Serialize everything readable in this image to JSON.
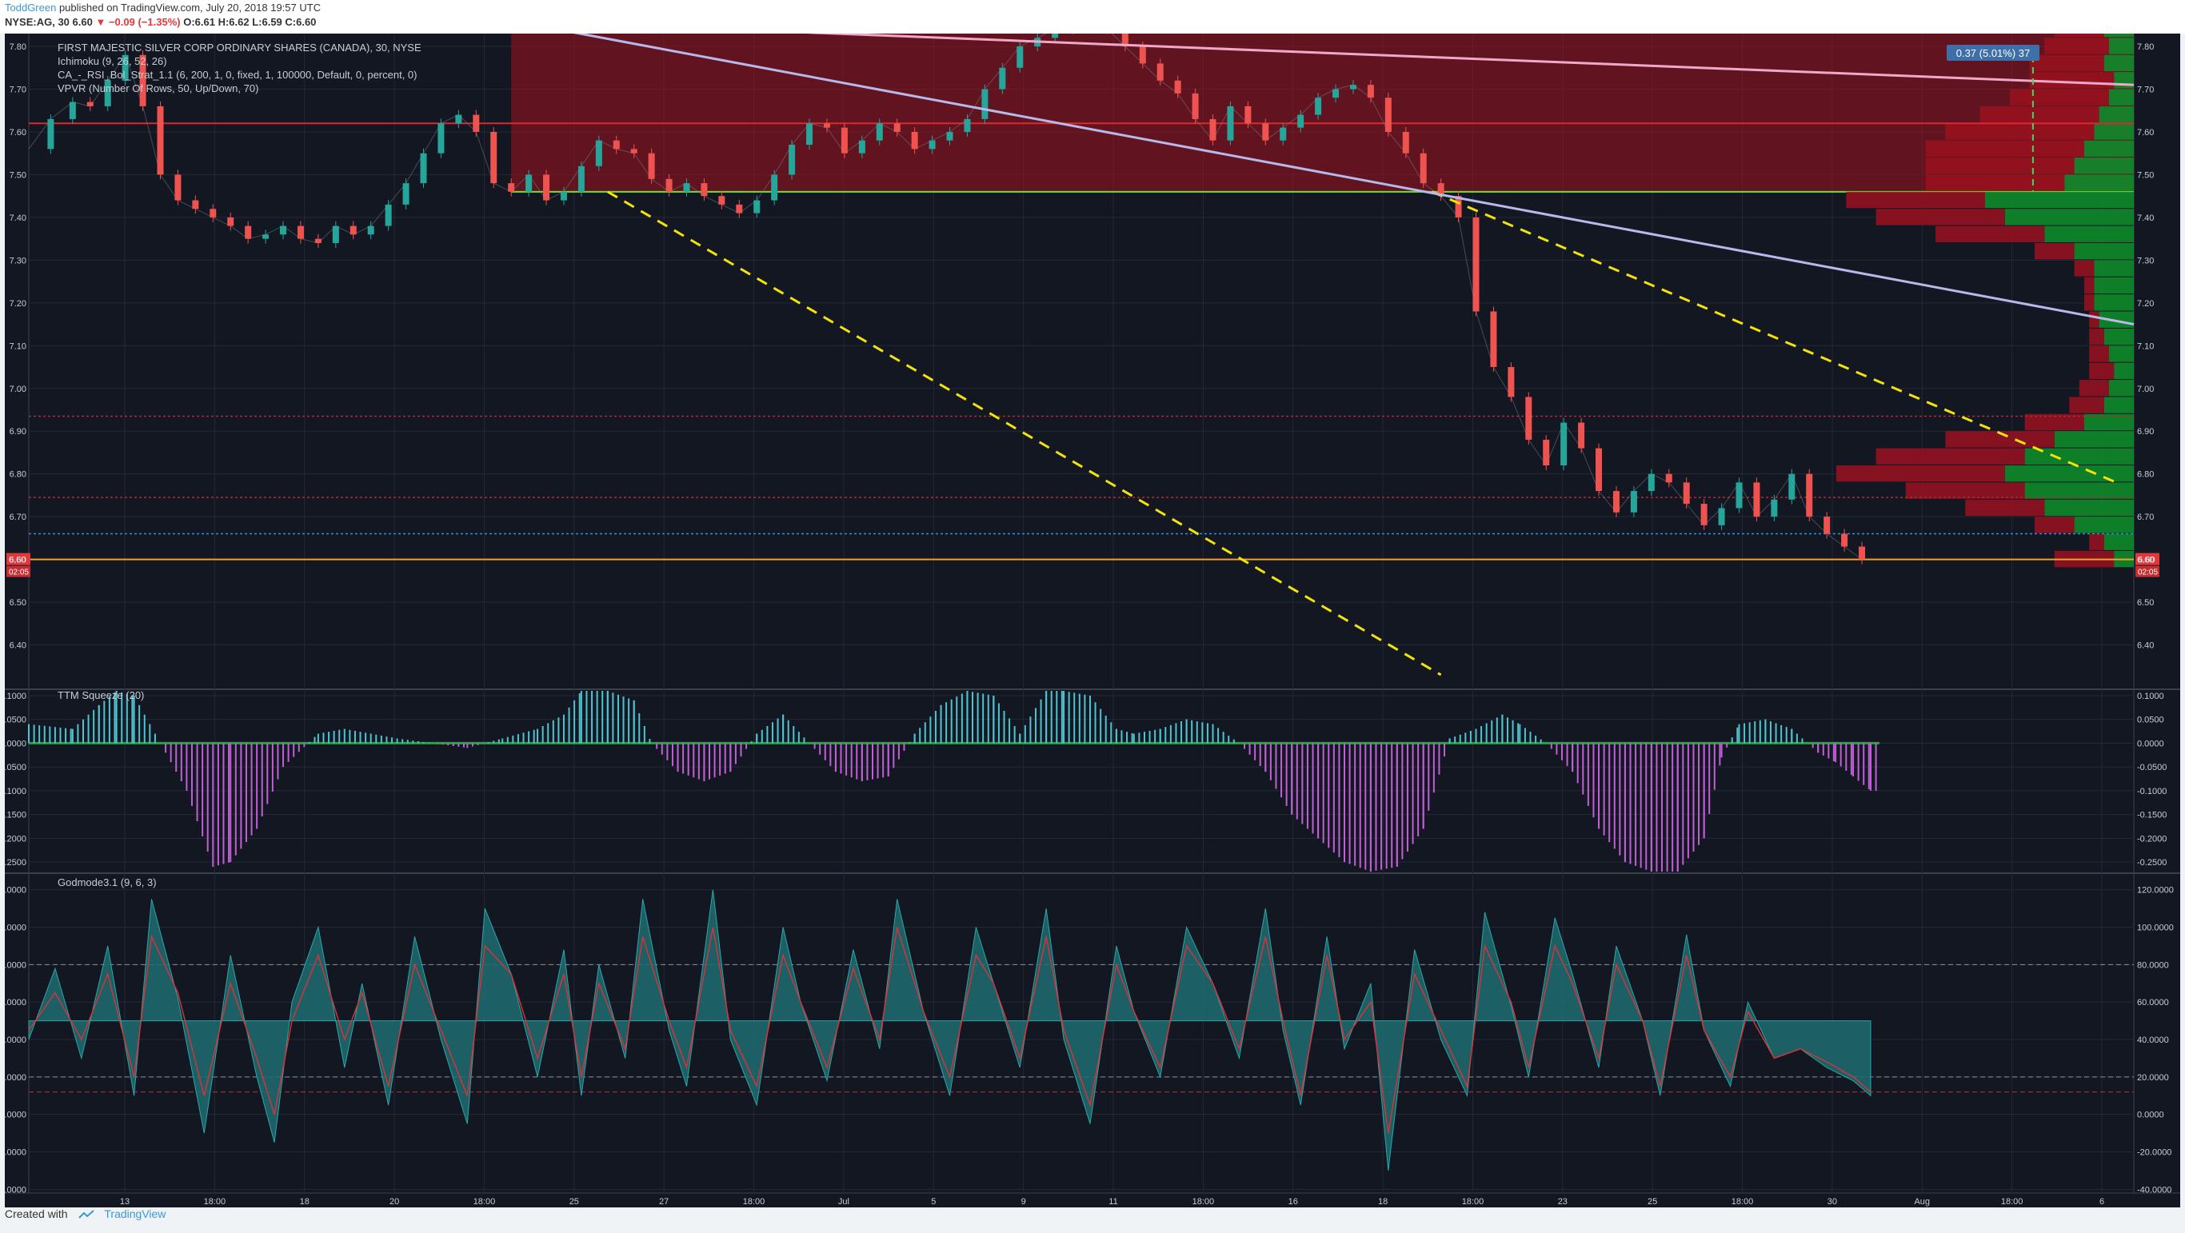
{
  "header": {
    "author": "ToddGreen",
    "published": "published on TradingView.com, July 20, 2018 19:57 UTC",
    "symbol": "NYSE:AG, 30",
    "price": "6.60",
    "change": "▼ −0.09 (−1.35%)",
    "ohlc": "O:6.61 H:6.62 L:6.59 C:6.60"
  },
  "footer": {
    "created_with": "Created with",
    "brand": "TradingView"
  },
  "colors": {
    "background": "#131722",
    "grid": "#242838",
    "up": "#26a69a",
    "down": "#ef5350",
    "yellow_trend": "#f2e40a",
    "lavender_trend": "#b6b9ea",
    "pink_trend": "#f0a8c9",
    "box_fill": "#a3121d",
    "box_line": "#6fe030",
    "hist_up": "#4fc3d0",
    "hist_down": "#c15fd6",
    "god_area": "#1e6c70",
    "text": "#c8ccd6"
  },
  "chart_data": [
    {
      "type": "candlestick",
      "title": "FIRST MAJESTIC SILVER CORP ORDINARY SHARES (CANADA), 30, NYSE",
      "legend": [
        "Ichimoku (9, 26, 52, 26)",
        "CA_-_RSI_Bol_Strat_1.1 (6, 200, 1, 0, fixed, 1, 100000, Default, 0, percent, 0)",
        "VPVR (Number Of Rows, 50, Up/Down, 70)"
      ],
      "ylim": [
        6.3,
        7.83
      ],
      "y_ticks": [
        "7.80",
        "7.70",
        "7.60",
        "7.50",
        "7.40",
        "7.30",
        "7.20",
        "7.10",
        "7.00",
        "6.90",
        "6.80",
        "6.70",
        "6.60",
        "6.50",
        "6.40"
      ],
      "x_tick_labels": [
        "13",
        "18:00",
        "18",
        "20",
        "18:00",
        "25",
        "27",
        "18:00",
        "Jul",
        "5",
        "9",
        "11",
        "18:00",
        "16",
        "18",
        "18:00",
        "23",
        "25",
        "18:00",
        "30",
        "Aug",
        "18:00",
        "6"
      ],
      "last_price": "6.60",
      "countdown": "02:05",
      "measure_label": "0.37 (5.01%) 37",
      "price_path": [
        [
          0,
          7.56
        ],
        [
          5,
          7.63
        ],
        [
          10,
          7.67
        ],
        [
          14,
          7.66
        ],
        [
          18,
          7.72
        ],
        [
          22,
          7.78
        ],
        [
          26,
          7.66
        ],
        [
          30,
          7.5
        ],
        [
          34,
          7.44
        ],
        [
          38,
          7.42
        ],
        [
          42,
          7.4
        ],
        [
          46,
          7.38
        ],
        [
          50,
          7.35
        ],
        [
          54,
          7.36
        ],
        [
          58,
          7.38
        ],
        [
          62,
          7.35
        ],
        [
          66,
          7.34
        ],
        [
          70,
          7.38
        ],
        [
          74,
          7.36
        ],
        [
          78,
          7.38
        ],
        [
          82,
          7.43
        ],
        [
          86,
          7.48
        ],
        [
          90,
          7.55
        ],
        [
          94,
          7.62
        ],
        [
          98,
          7.64
        ],
        [
          102,
          7.6
        ],
        [
          106,
          7.48
        ],
        [
          110,
          7.46
        ],
        [
          114,
          7.5
        ],
        [
          118,
          7.44
        ],
        [
          122,
          7.46
        ],
        [
          126,
          7.52
        ],
        [
          130,
          7.58
        ],
        [
          134,
          7.56
        ],
        [
          138,
          7.55
        ],
        [
          142,
          7.49
        ],
        [
          146,
          7.46
        ],
        [
          150,
          7.48
        ],
        [
          154,
          7.45
        ],
        [
          158,
          7.43
        ],
        [
          162,
          7.41
        ],
        [
          166,
          7.44
        ],
        [
          170,
          7.5
        ],
        [
          174,
          7.57
        ],
        [
          178,
          7.62
        ],
        [
          182,
          7.61
        ],
        [
          186,
          7.55
        ],
        [
          190,
          7.58
        ],
        [
          194,
          7.62
        ],
        [
          198,
          7.6
        ],
        [
          202,
          7.56
        ],
        [
          206,
          7.58
        ],
        [
          210,
          7.6
        ],
        [
          214,
          7.63
        ],
        [
          218,
          7.7
        ],
        [
          222,
          7.75
        ],
        [
          226,
          7.8
        ],
        [
          230,
          7.82
        ],
        [
          234,
          7.84
        ],
        [
          238,
          7.85
        ],
        [
          242,
          7.86
        ],
        [
          246,
          7.84
        ],
        [
          250,
          7.8
        ],
        [
          254,
          7.76
        ],
        [
          258,
          7.72
        ],
        [
          262,
          7.69
        ],
        [
          266,
          7.63
        ],
        [
          270,
          7.58
        ],
        [
          274,
          7.66
        ],
        [
          278,
          7.62
        ],
        [
          282,
          7.58
        ],
        [
          286,
          7.61
        ],
        [
          290,
          7.64
        ],
        [
          294,
          7.68
        ],
        [
          298,
          7.7
        ],
        [
          302,
          7.71
        ],
        [
          306,
          7.68
        ],
        [
          310,
          7.6
        ],
        [
          314,
          7.55
        ],
        [
          318,
          7.48
        ],
        [
          322,
          7.45
        ],
        [
          326,
          7.4
        ],
        [
          330,
          7.18
        ],
        [
          334,
          7.05
        ],
        [
          338,
          6.98
        ],
        [
          342,
          6.88
        ],
        [
          346,
          6.82
        ],
        [
          350,
          6.92
        ],
        [
          354,
          6.86
        ],
        [
          358,
          6.76
        ],
        [
          362,
          6.71
        ],
        [
          366,
          6.76
        ],
        [
          370,
          6.8
        ],
        [
          374,
          6.78
        ],
        [
          378,
          6.73
        ],
        [
          382,
          6.68
        ],
        [
          386,
          6.72
        ],
        [
          390,
          6.78
        ],
        [
          394,
          6.7
        ],
        [
          398,
          6.74
        ],
        [
          402,
          6.8
        ],
        [
          406,
          6.7
        ],
        [
          410,
          6.66
        ],
        [
          414,
          6.63
        ],
        [
          418,
          6.6
        ]
      ],
      "trendlines": [
        {
          "name": "yellow lower",
          "color": "yellow_trend",
          "dash": true,
          "from": [
            132,
            7.46
          ],
          "to": [
            322,
            6.33
          ]
        },
        {
          "name": "yellow upper",
          "color": "yellow_trend",
          "dash": true,
          "from": [
            320,
            7.46
          ],
          "to": [
            476,
            6.78
          ]
        },
        {
          "name": "lavender",
          "color": "lavender_trend",
          "dash": false,
          "from": [
            110,
            7.86
          ],
          "to": [
            480,
            7.15
          ]
        },
        {
          "name": "pink",
          "color": "pink_trend",
          "dash": false,
          "from": [
            110,
            7.86
          ],
          "to": [
            480,
            7.71
          ]
        }
      ],
      "zones": [
        {
          "name": "resistance box",
          "from_x": 110,
          "to_x": 480,
          "low": 7.46,
          "high": 7.84
        },
        {
          "name": "red level",
          "price": 7.62
        },
        {
          "name": "red dotted level",
          "price": 6.935
        },
        {
          "name": "red dotted level 2",
          "price": 6.745
        },
        {
          "name": "blue dotted level",
          "price": 6.66
        },
        {
          "name": "orange level",
          "price": 6.6
        }
      ],
      "vpvr": [
        {
          "price": 7.84,
          "up": 0.06,
          "down": 0.1
        },
        {
          "price": 7.8,
          "up": 0.05,
          "down": 0.13
        },
        {
          "price": 7.76,
          "up": 0.06,
          "down": 0.15
        },
        {
          "price": 7.72,
          "up": 0.04,
          "down": 0.17
        },
        {
          "price": 7.68,
          "up": 0.05,
          "down": 0.2
        },
        {
          "price": 7.64,
          "up": 0.07,
          "down": 0.24
        },
        {
          "price": 7.6,
          "up": 0.08,
          "down": 0.3
        },
        {
          "price": 7.56,
          "up": 0.1,
          "down": 0.32
        },
        {
          "price": 7.52,
          "up": 0.12,
          "down": 0.3
        },
        {
          "price": 7.48,
          "up": 0.14,
          "down": 0.28
        },
        {
          "price": 7.44,
          "up": 0.3,
          "down": 0.28
        },
        {
          "price": 7.4,
          "up": 0.26,
          "down": 0.26
        },
        {
          "price": 7.36,
          "up": 0.18,
          "down": 0.22
        },
        {
          "price": 7.32,
          "up": 0.12,
          "down": 0.08
        },
        {
          "price": 7.28,
          "up": 0.08,
          "down": 0.04
        },
        {
          "price": 7.24,
          "up": 0.08,
          "down": 0.02
        },
        {
          "price": 7.2,
          "up": 0.08,
          "down": 0.02
        },
        {
          "price": 7.16,
          "up": 0.07,
          "down": 0.02
        },
        {
          "price": 7.12,
          "up": 0.06,
          "down": 0.03
        },
        {
          "price": 7.08,
          "up": 0.05,
          "down": 0.04
        },
        {
          "price": 7.04,
          "up": 0.04,
          "down": 0.05
        },
        {
          "price": 7.0,
          "up": 0.05,
          "down": 0.06
        },
        {
          "price": 6.96,
          "up": 0.06,
          "down": 0.07
        },
        {
          "price": 6.92,
          "up": 0.1,
          "down": 0.12
        },
        {
          "price": 6.88,
          "up": 0.16,
          "down": 0.22
        },
        {
          "price": 6.84,
          "up": 0.22,
          "down": 0.3
        },
        {
          "price": 6.8,
          "up": 0.26,
          "down": 0.34
        },
        {
          "price": 6.76,
          "up": 0.22,
          "down": 0.24
        },
        {
          "price": 6.72,
          "up": 0.18,
          "down": 0.16
        },
        {
          "price": 6.68,
          "up": 0.12,
          "down": 0.08
        },
        {
          "price": 6.64,
          "up": 0.06,
          "down": 0.03
        },
        {
          "price": 6.6,
          "up": 0.04,
          "down": 0.12
        }
      ]
    },
    {
      "type": "bar",
      "title": "TTM Squeeze (20)",
      "ylim": [
        -0.27,
        0.11
      ],
      "y_ticks": [
        "0.1000",
        "0.0500",
        "0.0000",
        "-0.0500",
        "-0.1000",
        "-0.1500",
        "-0.2000",
        "-0.2500"
      ],
      "x": [
        0,
        10,
        16,
        20,
        24,
        30,
        36,
        42,
        46,
        52,
        58,
        66,
        72,
        78,
        84,
        92,
        100,
        108,
        116,
        122,
        126,
        132,
        138,
        142,
        148,
        154,
        160,
        166,
        172,
        178,
        184,
        190,
        196,
        202,
        208,
        214,
        220,
        226,
        232,
        236,
        242,
        248,
        252,
        258,
        264,
        270,
        276,
        282,
        288,
        294,
        300,
        306,
        312,
        318,
        324,
        330,
        336,
        340,
        346,
        352,
        358,
        364,
        370,
        376,
        382,
        386,
        390,
        396,
        402,
        408,
        412,
        416,
        420
      ],
      "values": [
        0.04,
        0.03,
        0.08,
        0.11,
        0.1,
        0.0,
        -0.1,
        -0.26,
        -0.25,
        -0.18,
        -0.05,
        0.02,
        0.03,
        0.02,
        0.01,
        0.0,
        -0.01,
        0.01,
        0.03,
        0.06,
        0.11,
        0.11,
        0.09,
        0.0,
        -0.06,
        -0.08,
        -0.06,
        0.02,
        0.06,
        0.0,
        -0.06,
        -0.08,
        -0.07,
        0.02,
        0.08,
        0.11,
        0.1,
        0.02,
        0.11,
        0.11,
        0.1,
        0.03,
        0.02,
        0.03,
        0.05,
        0.04,
        0.0,
        -0.06,
        -0.15,
        -0.2,
        -0.25,
        -0.27,
        -0.26,
        -0.18,
        0.01,
        0.03,
        0.06,
        0.04,
        0.0,
        -0.06,
        -0.18,
        -0.25,
        -0.27,
        -0.27,
        -0.2,
        -0.03,
        0.04,
        0.05,
        0.03,
        -0.02,
        -0.04,
        -0.07,
        -0.1
      ]
    },
    {
      "type": "area",
      "title": "Godmode3.1 (9, 6, 3)",
      "ylim": [
        -42,
        128
      ],
      "y_ticks": [
        "120.0000",
        "100.0000",
        "80.0000",
        "60.0000",
        "40.0000",
        "20.0000",
        "0.0000",
        "-20.0000",
        "-40.0000"
      ],
      "levels": [
        80,
        20,
        12
      ],
      "baseline": 50,
      "x": [
        0,
        6,
        12,
        18,
        24,
        28,
        34,
        40,
        46,
        52,
        56,
        60,
        66,
        72,
        76,
        82,
        88,
        94,
        100,
        104,
        110,
        116,
        122,
        126,
        130,
        136,
        140,
        146,
        150,
        156,
        160,
        166,
        172,
        176,
        182,
        188,
        194,
        198,
        204,
        210,
        216,
        220,
        226,
        232,
        236,
        242,
        248,
        252,
        258,
        264,
        270,
        276,
        282,
        286,
        290,
        296,
        300,
        306,
        310,
        316,
        322,
        328,
        332,
        338,
        342,
        348,
        352,
        358,
        362,
        368,
        372,
        378,
        382,
        388,
        392,
        398,
        404,
        410,
        416,
        420
      ],
      "values": [
        40,
        78,
        30,
        90,
        10,
        115,
        62,
        -10,
        85,
        20,
        -15,
        60,
        100,
        25,
        70,
        5,
        95,
        40,
        -5,
        110,
        75,
        20,
        88,
        10,
        80,
        30,
        115,
        45,
        15,
        120,
        40,
        5,
        100,
        60,
        18,
        88,
        35,
        115,
        55,
        10,
        100,
        70,
        25,
        110,
        40,
        -5,
        90,
        55,
        20,
        100,
        70,
        30,
        110,
        45,
        5,
        95,
        35,
        70,
        -30,
        88,
        40,
        10,
        108,
        58,
        20,
        105,
        75,
        25,
        90,
        50,
        10,
        96,
        45,
        15,
        60,
        30,
        35,
        25,
        18,
        10
      ],
      "signal": [
        45,
        65,
        40,
        75,
        20,
        95,
        65,
        10,
        70,
        30,
        0,
        50,
        85,
        40,
        65,
        15,
        80,
        45,
        10,
        90,
        75,
        30,
        75,
        20,
        70,
        35,
        95,
        50,
        25,
        100,
        45,
        15,
        85,
        60,
        25,
        78,
        40,
        100,
        55,
        20,
        85,
        70,
        30,
        95,
        45,
        5,
        80,
        55,
        25,
        90,
        70,
        35,
        95,
        50,
        10,
        85,
        40,
        60,
        -10,
        75,
        45,
        15,
        90,
        60,
        25,
        90,
        70,
        30,
        80,
        50,
        15,
        85,
        45,
        20,
        55,
        30,
        35,
        28,
        20,
        12
      ]
    }
  ]
}
